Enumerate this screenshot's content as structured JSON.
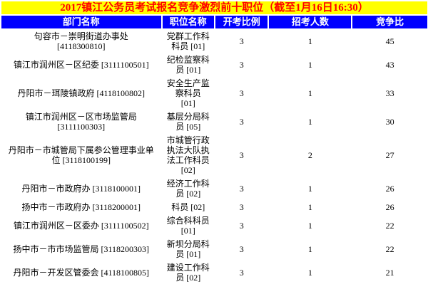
{
  "chart_data": {
    "type": "table",
    "title": "2017镇江公务员考试报名竞争激烈前十职位（截至1月16日16:30）",
    "columns": [
      "部门名称",
      "职位名称",
      "开考比例",
      "招考人数",
      "竞争比"
    ],
    "rows": [
      {
        "department": "句容市－崇明街道办事处\n[4118300810]",
        "position": "党群工作科\n科员 [01]",
        "ratio": "3",
        "recruits": "1",
        "competition": "45"
      },
      {
        "department": "镇江市润州区－区纪委 [3111100501]",
        "position": "纪检监察科\n员 [01]",
        "ratio": "3",
        "recruits": "1",
        "competition": "43"
      },
      {
        "department": "丹阳市－珥陵镇政府 [4118100802]",
        "position": "安全生产监\n察科员\n[01]",
        "ratio": "3",
        "recruits": "1",
        "competition": "33"
      },
      {
        "department": "镇江市润州区－区市场监管局\n[3111100303]",
        "position": "基层分局科\n员 [05]",
        "ratio": "3",
        "recruits": "1",
        "competition": "30"
      },
      {
        "department": "丹阳市－市城管局下属参公管理事业单\n位 [3118100199]",
        "position": "市城管行政\n执法大队执\n法工作科员\n[02]",
        "ratio": "3",
        "recruits": "2",
        "competition": "27"
      },
      {
        "department": "丹阳市－市政府办 [3118100001]",
        "position": "经济工作科\n员 [02]",
        "ratio": "3",
        "recruits": "1",
        "competition": "26"
      },
      {
        "department": "扬中市－市政府办 [3118200001]",
        "position": "科员 [02]",
        "ratio": "3",
        "recruits": "1",
        "competition": "26"
      },
      {
        "department": "镇江市润州区－区委办 [3111100502]",
        "position": "综合科科员\n[01]",
        "ratio": "3",
        "recruits": "1",
        "competition": "22"
      },
      {
        "department": "扬中市－市市场监管局 [3118200303]",
        "position": "新坝分局科\n员 [01]",
        "ratio": "3",
        "recruits": "1",
        "competition": "22"
      },
      {
        "department": "丹阳市－开发区管委会 [4118100805]",
        "position": "建设工作科\n员 [02]",
        "ratio": "3",
        "recruits": "1",
        "competition": "21"
      }
    ]
  },
  "colors": {
    "title_background": "#FFFF00",
    "title_text": "#FF0000",
    "header_background": "#0000FF",
    "header_text": "#FFFFFF",
    "body_background": "#FFFFFF",
    "body_text": "#000000"
  }
}
